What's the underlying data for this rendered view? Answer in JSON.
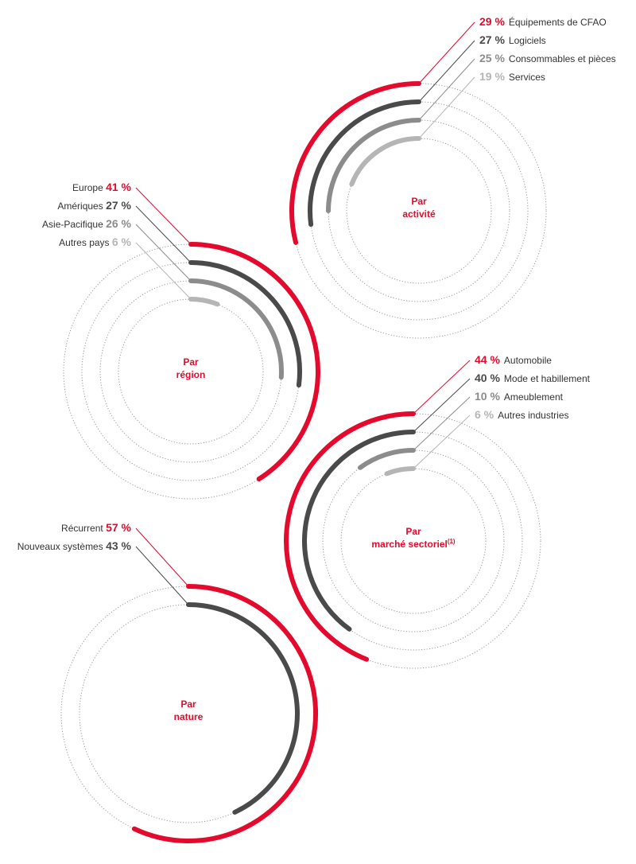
{
  "colors": {
    "accent": "#e30a2d",
    "dark": "#4a4a4a",
    "medium": "#8c8c8c",
    "light": "#b5b5b5",
    "guide": "#9a9a9a"
  },
  "chart_data": [
    {
      "id": "activite",
      "type": "radial-bar",
      "title_lines": [
        "Par",
        "activité"
      ],
      "label_side": "right",
      "series": [
        {
          "name": "Équipements de CFAO",
          "value": 29,
          "label": "29 %"
        },
        {
          "name": "Logiciels",
          "value": 27,
          "label": "27 %"
        },
        {
          "name": "Consommables et pièces",
          "value": 25,
          "label": "25 %"
        },
        {
          "name": "Services",
          "value": 19,
          "label": "19 %"
        }
      ]
    },
    {
      "id": "region",
      "type": "radial-bar",
      "title_lines": [
        "Par",
        "région"
      ],
      "label_side": "left",
      "series": [
        {
          "name": "Europe",
          "value": 41,
          "label": "41 %"
        },
        {
          "name": "Amériques",
          "value": 27,
          "label": "27 %"
        },
        {
          "name": "Asie-Pacifique",
          "value": 26,
          "label": "26 %"
        },
        {
          "name": "Autres pays",
          "value": 6,
          "label": "6 %"
        }
      ]
    },
    {
      "id": "marche",
      "type": "radial-bar",
      "title_lines": [
        "Par",
        "marché sectoriel"
      ],
      "title_footnote": "(1)",
      "label_side": "right",
      "series": [
        {
          "name": "Automobile",
          "value": 44,
          "label": "44 %"
        },
        {
          "name": "Mode et habillement",
          "value": 40,
          "label": "40 %"
        },
        {
          "name": "Ameublement",
          "value": 10,
          "label": "10 %"
        },
        {
          "name": "Autres industries",
          "value": 6,
          "label": "6 %"
        }
      ]
    },
    {
      "id": "nature",
      "type": "radial-bar",
      "title_lines": [
        "Par",
        "nature"
      ],
      "label_side": "left",
      "series": [
        {
          "name": "Récurrent",
          "value": 57,
          "label": "57 %"
        },
        {
          "name": "Nouveaux systèmes",
          "value": 43,
          "label": "43 %"
        }
      ]
    }
  ]
}
